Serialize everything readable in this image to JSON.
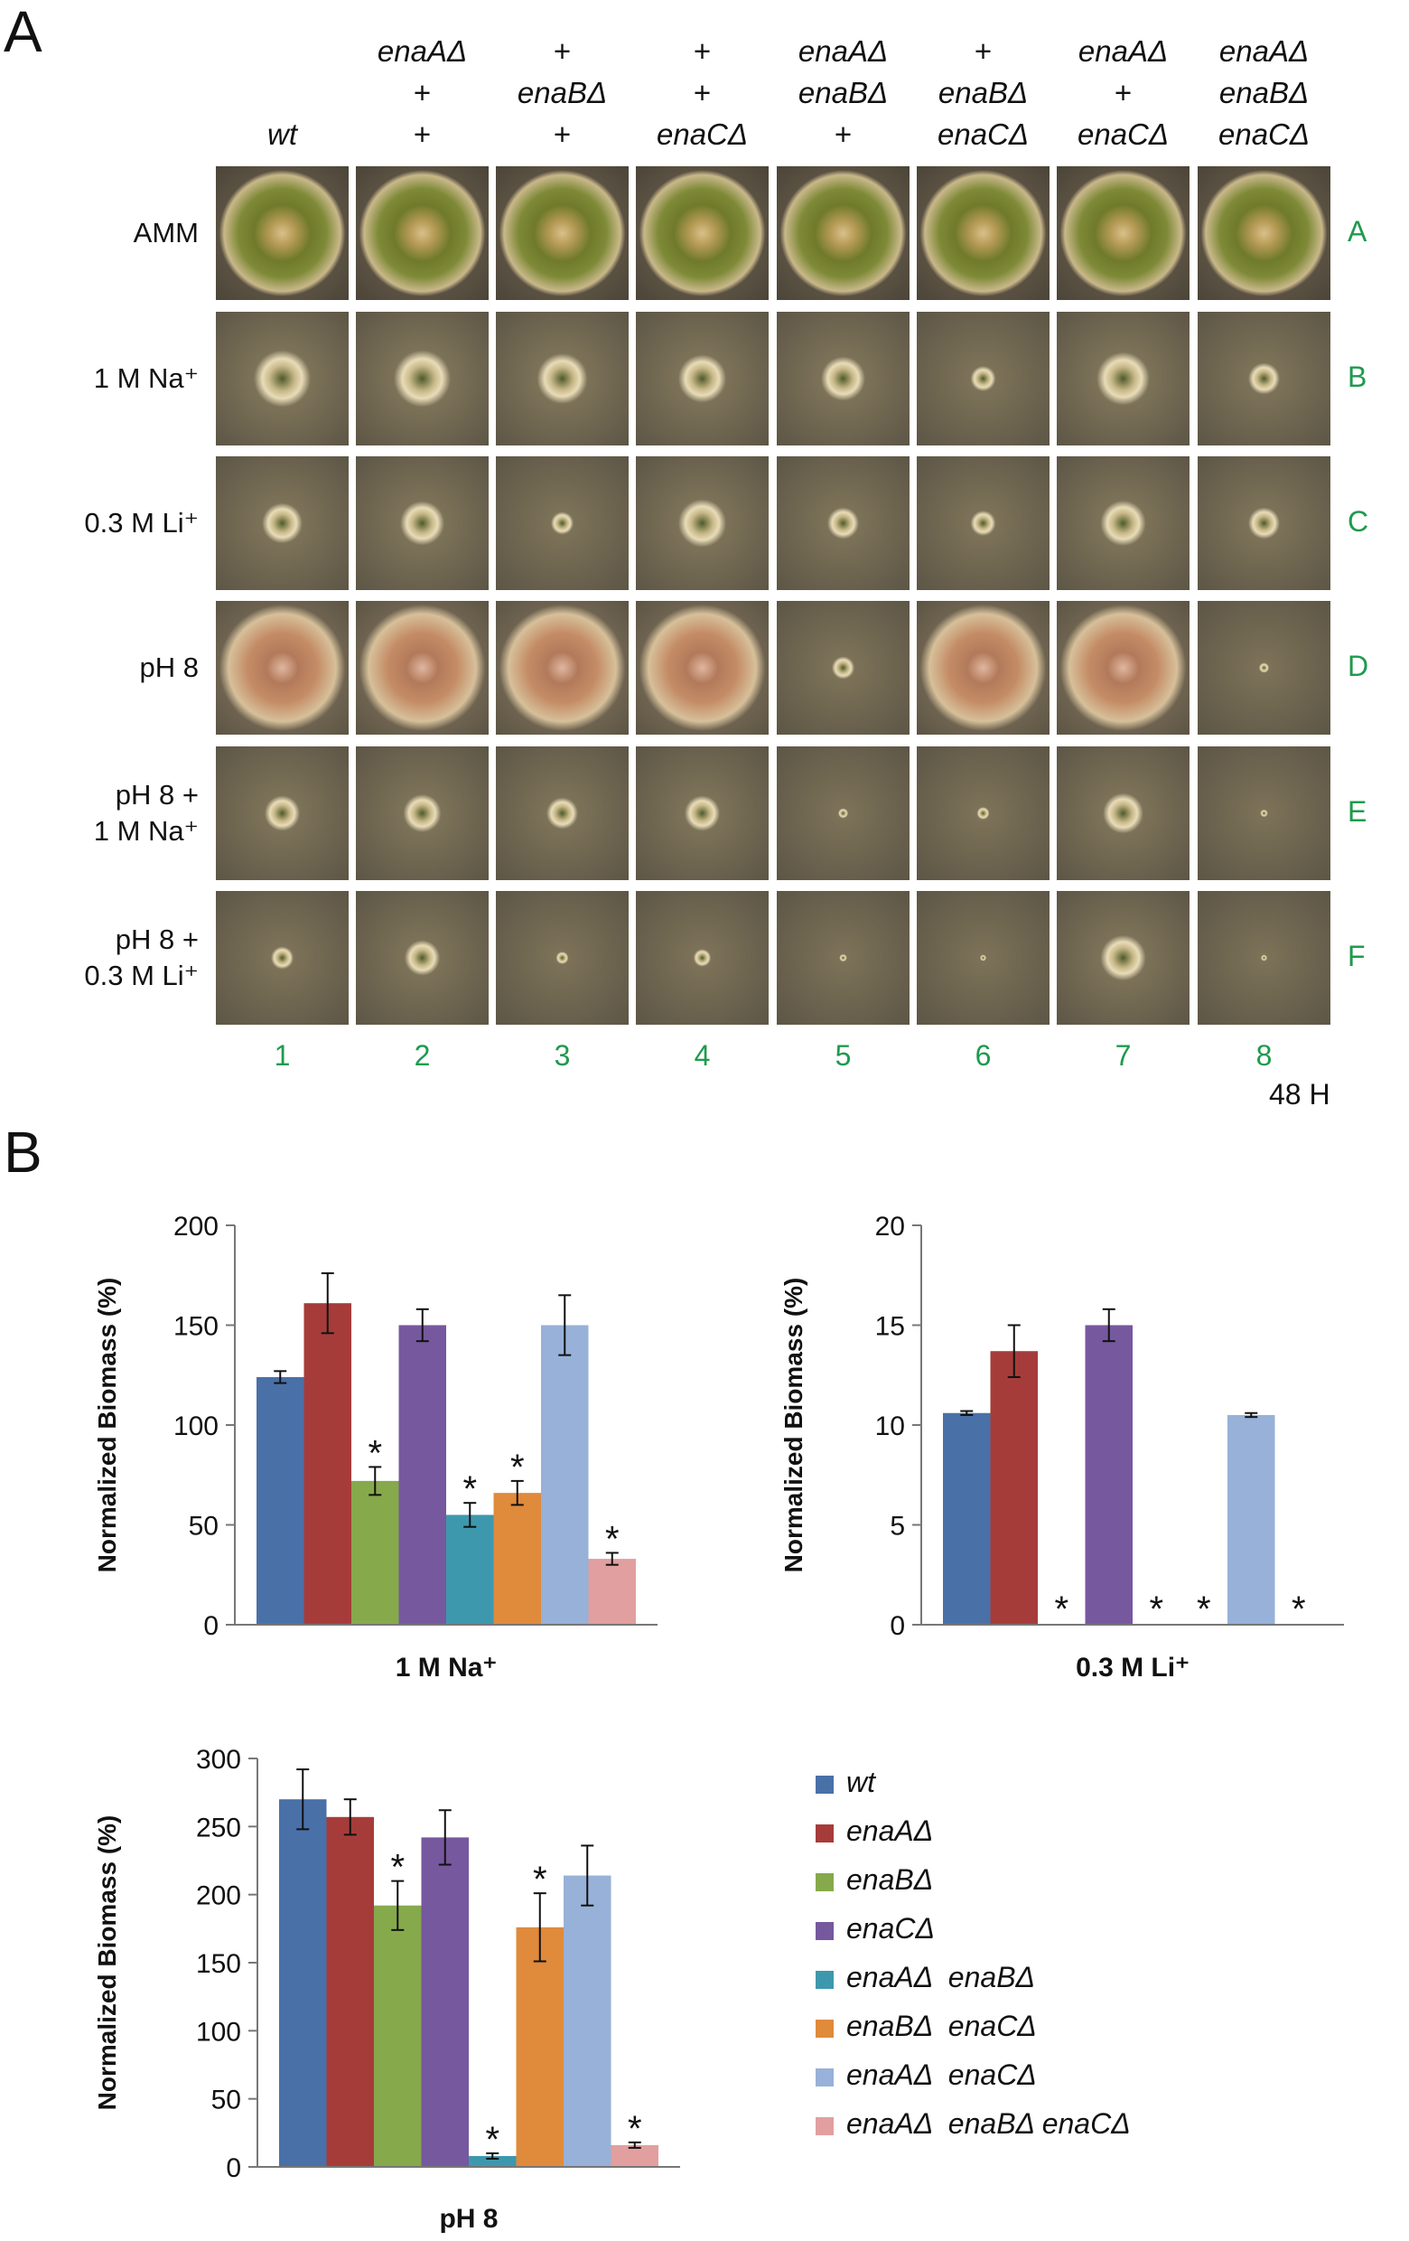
{
  "panel_a": {
    "letter": "A",
    "genotypes": [
      [
        "",
        "",
        "wt"
      ],
      [
        "enaAΔ",
        "+",
        "+"
      ],
      [
        "+",
        "enaBΔ",
        "+"
      ],
      [
        "+",
        "+",
        "enaCΔ"
      ],
      [
        "enaAΔ",
        "enaBΔ",
        "+"
      ],
      [
        "+",
        "enaBΔ",
        "enaCΔ"
      ],
      [
        "enaAΔ",
        "+",
        "enaCΔ"
      ],
      [
        "enaAΔ",
        "enaBΔ",
        "enaCΔ"
      ]
    ],
    "rows": [
      {
        "letter": "A",
        "label": [
          "AMM"
        ]
      },
      {
        "letter": "B",
        "label": [
          "1 M Na⁺"
        ]
      },
      {
        "letter": "C",
        "label": [
          "0.3 M Li⁺"
        ]
      },
      {
        "letter": "D",
        "label": [
          "pH 8"
        ]
      },
      {
        "letter": "E",
        "label": [
          "pH 8 +",
          "1 M Na⁺"
        ]
      },
      {
        "letter": "F",
        "label": [
          "pH 8 +",
          "0.3 M Li⁺"
        ]
      }
    ],
    "columns": [
      "1",
      "2",
      "3",
      "4",
      "5",
      "6",
      "7",
      "8"
    ],
    "time": "48 H"
  },
  "panel_b": {
    "letter": "B",
    "legend": [
      {
        "label": "wt",
        "color": "#4a70a8"
      },
      {
        "label": "enaAΔ",
        "color": "#a63c3a"
      },
      {
        "label": "enaBΔ",
        "color": "#86a94c"
      },
      {
        "label": "enaCΔ",
        "color": "#76589e"
      },
      {
        "label": "enaAΔ  enaBΔ",
        "color": "#3e98ad"
      },
      {
        "label": "enaBΔ  enaCΔ",
        "color": "#e08a3c"
      },
      {
        "label": "enaAΔ  enaCΔ",
        "color": "#97b1d8"
      },
      {
        "label": "enaAΔ  enaBΔ enaCΔ",
        "color": "#e29f9f"
      }
    ]
  },
  "chart_data": [
    {
      "type": "bar",
      "title": "",
      "xlabel": "1 M Na⁺",
      "ylabel": "Normalized Biomass (%)",
      "ylim": [
        0,
        200
      ],
      "yticks": [
        "0",
        "50",
        "100",
        "150",
        "200"
      ],
      "values": [
        124,
        161,
        72,
        150,
        55,
        66,
        150,
        33
      ],
      "errors": [
        3,
        15,
        7,
        8,
        6,
        6,
        15,
        3
      ],
      "significant": [
        false,
        false,
        true,
        false,
        true,
        true,
        false,
        true
      ]
    },
    {
      "type": "bar",
      "title": "",
      "xlabel": "0.3 M Li⁺",
      "ylabel": "Normalized Biomass (%)",
      "ylim": [
        0,
        20
      ],
      "yticks": [
        "0",
        "5",
        "10",
        "15",
        "20"
      ],
      "values": [
        10.6,
        13.7,
        0,
        15.0,
        0,
        0,
        10.5,
        0
      ],
      "errors": [
        0.1,
        1.3,
        0,
        0.8,
        0,
        0,
        0.1,
        0
      ],
      "significant": [
        false,
        false,
        true,
        false,
        true,
        true,
        false,
        true
      ]
    },
    {
      "type": "bar",
      "title": "",
      "xlabel": "pH 8",
      "ylabel": "Normalized Biomass (%)",
      "ylim": [
        0,
        300
      ],
      "yticks": [
        "0",
        "50",
        "100",
        "150",
        "200",
        "250",
        "300"
      ],
      "values": [
        270,
        257,
        192,
        242,
        8,
        176,
        214,
        16
      ],
      "errors": [
        22,
        13,
        18,
        20,
        2,
        25,
        22,
        2
      ],
      "significant": [
        false,
        false,
        true,
        false,
        true,
        true,
        false,
        true
      ]
    }
  ]
}
